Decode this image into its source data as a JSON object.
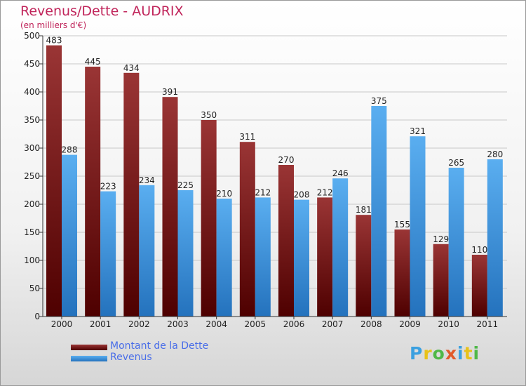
{
  "title": "Revenus/Dette - AUDRIX",
  "subtitle": "(en milliers d'€)",
  "logo_text": "Proxiti",
  "colors": {
    "dette_dark": "#5a0000",
    "dette_light": "#9a3535",
    "revenus_dark": "#2472bd",
    "revenus_light": "#5aaef0",
    "title": "#c0245a",
    "legend_text": "#4a6ee8"
  },
  "chart_data": {
    "type": "bar",
    "title": "Revenus/Dette - AUDRIX",
    "subtitle": "(en milliers d'€)",
    "categories": [
      "2000",
      "2001",
      "2002",
      "2003",
      "2004",
      "2005",
      "2006",
      "2007",
      "2008",
      "2009",
      "2010",
      "2011"
    ],
    "series": [
      {
        "name": "Montant de la Dette",
        "values": [
          483,
          445,
          434,
          391,
          350,
          311,
          270,
          212,
          181,
          155,
          129,
          110
        ]
      },
      {
        "name": "Revenus",
        "values": [
          288,
          223,
          234,
          225,
          210,
          212,
          208,
          246,
          375,
          321,
          265,
          280
        ]
      }
    ],
    "y_ticks": [
      0,
      50,
      100,
      150,
      200,
      250,
      300,
      350,
      400,
      450,
      500
    ],
    "ylim": [
      0,
      500
    ],
    "grid": true,
    "legend_position": "bottom-left"
  }
}
